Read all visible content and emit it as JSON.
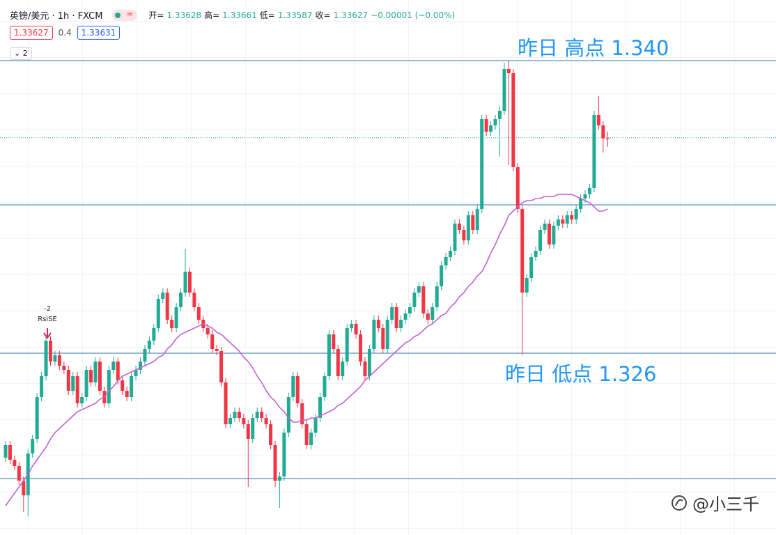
{
  "header": {
    "symbol": "英镑/美元 · 1h · FXCM",
    "open_label": "开=",
    "high_label": "高=",
    "low_label": "低=",
    "close_label": "收=",
    "change": "−0.00001 (−0.00%)",
    "bid": 1.33627,
    "spread": 0.4,
    "ask": 1.33631,
    "fold_count": "2"
  },
  "watermark": "@小三千",
  "signal": {
    "qty": "-2",
    "name": "RsiSE"
  },
  "chart_data": {
    "type": "candlestick",
    "ylim": [
      1.3173,
      1.3429
    ],
    "up_color": "#22ab94",
    "down_color": "#f23645",
    "candles": {
      "open": [
        1.321,
        1.3216,
        1.3209,
        1.3206,
        1.3199,
        1.3192,
        1.3212,
        1.3219,
        1.3239,
        1.3249,
        1.3266,
        1.3256,
        1.3259,
        1.3254,
        1.3252,
        1.3242,
        1.3249,
        1.3236,
        1.3239,
        1.3252,
        1.3246,
        1.3256,
        1.3242,
        1.3236,
        1.3252,
        1.3256,
        1.3247,
        1.3242,
        1.3239,
        1.3249,
        1.3252,
        1.3256,
        1.3262,
        1.3266,
        1.3272,
        1.3286,
        1.3289,
        1.3276,
        1.3272,
        1.3282,
        1.3289,
        1.3299,
        1.3289,
        1.3282,
        1.3276,
        1.3272,
        1.3269,
        1.3262,
        1.3261,
        1.3246,
        1.3226,
        1.3229,
        1.3232,
        1.3229,
        1.3226,
        1.3219,
        1.3229,
        1.3232,
        1.3229,
        1.3226,
        1.3216,
        1.3199,
        1.3201,
        1.3222,
        1.3239,
        1.3249,
        1.3236,
        1.3226,
        1.3216,
        1.3222,
        1.3229,
        1.3239,
        1.3249,
        1.3269,
        1.3262,
        1.3249,
        1.3256,
        1.3272,
        1.3274,
        1.3269,
        1.3256,
        1.3249,
        1.3262,
        1.3276,
        1.3272,
        1.3262,
        1.3276,
        1.3282,
        1.3272,
        1.3276,
        1.3279,
        1.3282,
        1.3289,
        1.3292,
        1.3279,
        1.3276,
        1.3282,
        1.3292,
        1.3302,
        1.3306,
        1.3309,
        1.3322,
        1.3319,
        1.3314,
        1.3326,
        1.3319,
        1.3329,
        1.3372,
        1.3366,
        1.3369,
        1.3372,
        1.3376,
        1.3396,
        1.3394,
        1.3349,
        1.3329,
        1.3289,
        1.3296,
        1.3306,
        1.3309,
        1.3319,
        1.3322,
        1.3312,
        1.3321,
        1.3324,
        1.3322,
        1.3326,
        1.3324,
        1.3329,
        1.3334,
        1.3336,
        1.3339,
        1.3374,
        1.3369,
        1.33628
      ],
      "high": [
        1.3218,
        1.3218,
        1.3211,
        1.3208,
        1.3201,
        1.3214,
        1.3221,
        1.3241,
        1.3251,
        1.3268,
        1.3268,
        1.3261,
        1.3261,
        1.3256,
        1.3254,
        1.3251,
        1.3251,
        1.3241,
        1.3254,
        1.3254,
        1.3258,
        1.3258,
        1.3244,
        1.3254,
        1.3258,
        1.3258,
        1.3249,
        1.3244,
        1.3251,
        1.3254,
        1.3258,
        1.3264,
        1.3268,
        1.3274,
        1.3288,
        1.3291,
        1.3291,
        1.3278,
        1.3284,
        1.3291,
        1.331,
        1.3301,
        1.3291,
        1.3284,
        1.3278,
        1.3274,
        1.3271,
        1.3264,
        1.3263,
        1.3248,
        1.3231,
        1.3234,
        1.3234,
        1.3231,
        1.3228,
        1.3231,
        1.3234,
        1.3234,
        1.3231,
        1.3228,
        1.3218,
        1.3203,
        1.3224,
        1.3241,
        1.3251,
        1.3251,
        1.3238,
        1.3228,
        1.3224,
        1.3231,
        1.3241,
        1.3251,
        1.3271,
        1.3271,
        1.3264,
        1.3258,
        1.3274,
        1.3276,
        1.3276,
        1.3271,
        1.3258,
        1.3264,
        1.3278,
        1.3278,
        1.3274,
        1.3278,
        1.3284,
        1.3284,
        1.3278,
        1.3281,
        1.3284,
        1.3291,
        1.3294,
        1.3294,
        1.3281,
        1.3284,
        1.3294,
        1.3304,
        1.3308,
        1.3311,
        1.3324,
        1.3324,
        1.3321,
        1.3328,
        1.3328,
        1.3331,
        1.3374,
        1.3374,
        1.3371,
        1.3374,
        1.3378,
        1.3399,
        1.34,
        1.3396,
        1.3351,
        1.3331,
        1.3298,
        1.3308,
        1.3311,
        1.3321,
        1.3324,
        1.3324,
        1.3323,
        1.3326,
        1.3326,
        1.3328,
        1.3328,
        1.3331,
        1.3336,
        1.3338,
        1.3341,
        1.3376,
        1.3383,
        1.3371,
        1.33661
      ],
      "low": [
        1.3208,
        1.3207,
        1.3204,
        1.3197,
        1.3184,
        1.3182,
        1.321,
        1.3217,
        1.3237,
        1.3247,
        1.3254,
        1.3254,
        1.3252,
        1.325,
        1.324,
        1.324,
        1.3234,
        1.3234,
        1.3237,
        1.3244,
        1.3244,
        1.324,
        1.3234,
        1.3234,
        1.325,
        1.3245,
        1.324,
        1.3237,
        1.3237,
        1.3247,
        1.325,
        1.3254,
        1.326,
        1.3264,
        1.327,
        1.3284,
        1.3274,
        1.327,
        1.327,
        1.328,
        1.3287,
        1.3287,
        1.328,
        1.3274,
        1.327,
        1.3267,
        1.326,
        1.3259,
        1.3244,
        1.3224,
        1.3224,
        1.3227,
        1.3227,
        1.3224,
        1.3196,
        1.3217,
        1.3227,
        1.3227,
        1.3224,
        1.3214,
        1.3196,
        1.3186,
        1.3199,
        1.322,
        1.3237,
        1.3234,
        1.3224,
        1.3214,
        1.3214,
        1.322,
        1.3227,
        1.3237,
        1.3247,
        1.326,
        1.3247,
        1.3247,
        1.3254,
        1.327,
        1.3267,
        1.3254,
        1.3247,
        1.3247,
        1.326,
        1.327,
        1.326,
        1.326,
        1.3274,
        1.327,
        1.327,
        1.3274,
        1.3277,
        1.328,
        1.3287,
        1.3277,
        1.3274,
        1.3274,
        1.328,
        1.329,
        1.33,
        1.3304,
        1.3307,
        1.3317,
        1.3312,
        1.3312,
        1.3317,
        1.3317,
        1.3327,
        1.3364,
        1.3364,
        1.3367,
        1.3354,
        1.3374,
        1.335,
        1.3347,
        1.3327,
        1.3259,
        1.3287,
        1.3294,
        1.3304,
        1.3307,
        1.3317,
        1.331,
        1.331,
        1.3319,
        1.332,
        1.332,
        1.3322,
        1.3322,
        1.3327,
        1.3332,
        1.3334,
        1.3337,
        1.3367,
        1.3356,
        1.33587
      ],
      "close": [
        1.3216,
        1.3209,
        1.3206,
        1.3199,
        1.3192,
        1.3212,
        1.3219,
        1.3239,
        1.3249,
        1.3266,
        1.3256,
        1.3259,
        1.3254,
        1.3252,
        1.3242,
        1.3249,
        1.3236,
        1.3239,
        1.3252,
        1.3246,
        1.3256,
        1.3242,
        1.3236,
        1.3252,
        1.3256,
        1.3247,
        1.3242,
        1.3239,
        1.3249,
        1.3252,
        1.3256,
        1.3262,
        1.3266,
        1.3272,
        1.3286,
        1.3289,
        1.3276,
        1.3272,
        1.3282,
        1.3289,
        1.3299,
        1.3289,
        1.3282,
        1.3276,
        1.3272,
        1.3269,
        1.3262,
        1.3261,
        1.3246,
        1.3226,
        1.3229,
        1.3232,
        1.3229,
        1.3226,
        1.3219,
        1.3229,
        1.3232,
        1.3229,
        1.3226,
        1.3216,
        1.3199,
        1.3201,
        1.3222,
        1.3239,
        1.3249,
        1.3236,
        1.3226,
        1.3216,
        1.3222,
        1.3229,
        1.3239,
        1.3249,
        1.3269,
        1.3262,
        1.3249,
        1.3256,
        1.3272,
        1.3274,
        1.3269,
        1.3256,
        1.3249,
        1.3262,
        1.3276,
        1.3272,
        1.3262,
        1.3276,
        1.3282,
        1.3272,
        1.3276,
        1.3279,
        1.3282,
        1.3289,
        1.3292,
        1.3279,
        1.3276,
        1.3282,
        1.3292,
        1.3302,
        1.3306,
        1.3309,
        1.3322,
        1.3319,
        1.3314,
        1.3326,
        1.3319,
        1.3329,
        1.3372,
        1.3366,
        1.3369,
        1.3372,
        1.3376,
        1.3396,
        1.3394,
        1.3349,
        1.3329,
        1.3289,
        1.3296,
        1.3306,
        1.3309,
        1.3319,
        1.3322,
        1.3312,
        1.3321,
        1.3324,
        1.3322,
        1.3326,
        1.3324,
        1.3329,
        1.3334,
        1.3336,
        1.3339,
        1.3374,
        1.3369,
        1.33628,
        1.33627
      ]
    },
    "ma": {
      "color": "#c062d4",
      "values": [
        1.3187,
        1.319,
        1.3193,
        1.3196,
        1.3199,
        1.3202,
        1.3206,
        1.3209,
        1.3212,
        1.3215,
        1.3219,
        1.3222,
        1.3224,
        1.3226,
        1.3228,
        1.323,
        1.3232,
        1.3233,
        1.3234,
        1.3235,
        1.3236,
        1.3238,
        1.3239,
        1.3242,
        1.3244,
        1.3247,
        1.3249,
        1.325,
        1.3251,
        1.3252,
        1.3253,
        1.3254,
        1.3255,
        1.3256,
        1.3258,
        1.3259,
        1.3262,
        1.3264,
        1.3267,
        1.3269,
        1.327,
        1.3271,
        1.3272,
        1.3273,
        1.3274,
        1.3273,
        1.3272,
        1.327,
        1.3269,
        1.3267,
        1.3265,
        1.3263,
        1.3261,
        1.3258,
        1.3256,
        1.3253,
        1.3249,
        1.3246,
        1.3242,
        1.3239,
        1.3237,
        1.3234,
        1.3232,
        1.3229,
        1.3227,
        1.3227,
        1.3228,
        1.3228,
        1.3229,
        1.3229,
        1.323,
        1.3231,
        1.3232,
        1.3233,
        1.3235,
        1.3236,
        1.3238,
        1.324,
        1.3242,
        1.3244,
        1.3247,
        1.3249,
        1.3251,
        1.3253,
        1.3255,
        1.3257,
        1.3259,
        1.3261,
        1.3263,
        1.3265,
        1.3266,
        1.3268,
        1.3269,
        1.3271,
        1.3273,
        1.3274,
        1.3276,
        1.3278,
        1.3279,
        1.3282,
        1.3284,
        1.3287,
        1.3289,
        1.3292,
        1.3294,
        1.3297,
        1.3299,
        1.3303,
        1.3308,
        1.3312,
        1.3317,
        1.3321,
        1.3326,
        1.3328,
        1.333,
        1.3332,
        1.3333,
        1.3333,
        1.3334,
        1.3334,
        1.3335,
        1.3335,
        1.3335,
        1.3336,
        1.3336,
        1.3336,
        1.3336,
        1.3335,
        1.3334,
        1.3333,
        1.3332,
        1.333,
        1.3328,
        1.3328,
        1.3329
      ]
    },
    "levels": [
      1.3331,
      1.32
    ],
    "line_color": "#2a7ab0",
    "annotations": [
      {
        "text": "昨日 高点 1.340",
        "value": 1.34
      },
      {
        "text": "昨日 低点 1.326",
        "value": 1.326
      }
    ]
  }
}
